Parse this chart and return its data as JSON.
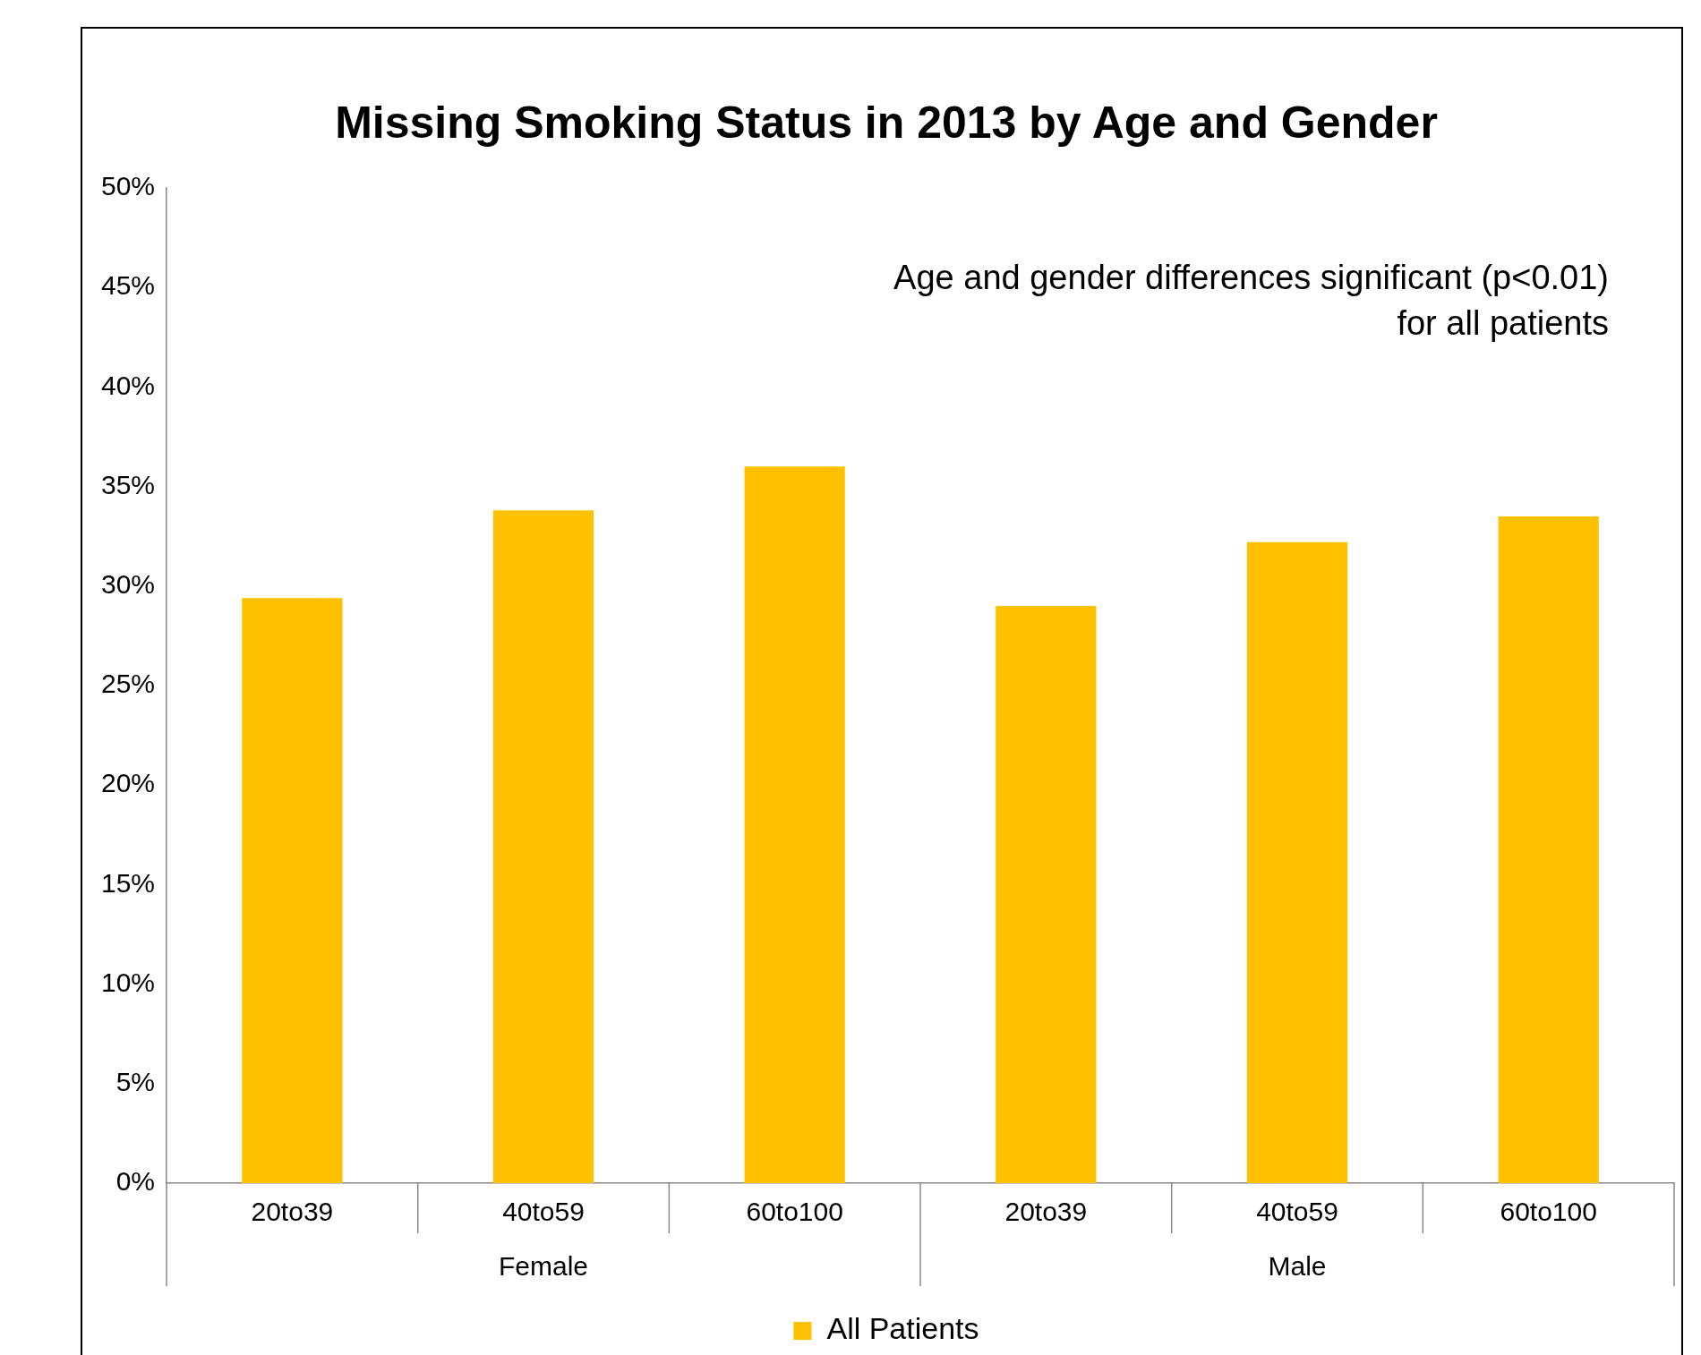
{
  "chart_data": {
    "type": "bar",
    "title": "Missing Smoking Status in 2013 by Age and Gender",
    "categories": [
      "20to39",
      "40to59",
      "60to100",
      "20to39",
      "40to59",
      "60to100"
    ],
    "series": [
      {
        "name": "All Patients",
        "color": "#ffc000",
        "values": [
          29.4,
          33.8,
          36.0,
          29.0,
          32.2,
          33.5
        ]
      }
    ],
    "ylim": [
      0,
      50
    ],
    "yticks": [
      {
        "value": 0,
        "label": "0%"
      },
      {
        "value": 5,
        "label": "5%"
      },
      {
        "value": 10,
        "label": "10%"
      },
      {
        "value": 15,
        "label": "15%"
      },
      {
        "value": 20,
        "label": "20%"
      },
      {
        "value": 25,
        "label": "25%"
      },
      {
        "value": 30,
        "label": "30%"
      },
      {
        "value": 35,
        "label": "35%"
      },
      {
        "value": 40,
        "label": "40%"
      },
      {
        "value": 45,
        "label": "45%"
      },
      {
        "value": 50,
        "label": "50%"
      }
    ],
    "annotations": [
      "Age and gender differences significant (p<0.01)\nfor all patients",
      "Female",
      "Male"
    ],
    "legend": "bottom",
    "grid": false
  }
}
